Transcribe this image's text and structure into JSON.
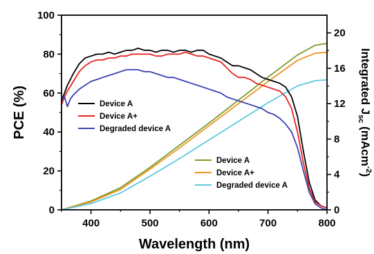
{
  "chart_data": {
    "type": "line",
    "xlabel": "Wavelength (nm)",
    "ylabel_left": "PCE (%)",
    "ylabel_right_parts": [
      "Integrated J",
      "sc",
      " (mAcm",
      "-2",
      ")"
    ],
    "xlim": [
      350,
      800
    ],
    "ylim_left": [
      0,
      100
    ],
    "ylim_right": [
      0,
      22
    ],
    "x_ticks": [
      400,
      500,
      600,
      700,
      800
    ],
    "y_ticks_left": [
      0,
      20,
      40,
      60,
      80,
      100
    ],
    "y_ticks_right": [
      0,
      4,
      8,
      12,
      16,
      20
    ],
    "legend_left": [
      "Device A",
      "Device A+",
      "Degraded device A"
    ],
    "legend_right": [
      "Device A",
      "Device A+",
      "Degraded device A"
    ],
    "colors": {
      "device_a": "#000000",
      "device_a_plus": "#e82020",
      "degraded": "#3a3fb0",
      "jsc_device_a": "#7a9a2a",
      "jsc_device_a_plus": "#f0921e",
      "jsc_degraded": "#5cc8e0"
    },
    "series_pce": [
      {
        "name": "Device A",
        "axis": "left",
        "x": [
          350,
          355,
          360,
          370,
          380,
          390,
          400,
          410,
          420,
          430,
          440,
          450,
          460,
          470,
          480,
          490,
          500,
          510,
          520,
          530,
          540,
          550,
          560,
          570,
          580,
          590,
          600,
          610,
          620,
          630,
          640,
          650,
          660,
          670,
          680,
          690,
          700,
          710,
          720,
          730,
          740,
          750,
          760,
          770,
          780,
          790,
          800
        ],
        "y": [
          56,
          60,
          64,
          70,
          75,
          78,
          79,
          80,
          80,
          81,
          80,
          81,
          82,
          82,
          83,
          82,
          82,
          81,
          82,
          82,
          81,
          82,
          82,
          81,
          82,
          82,
          80,
          79,
          78,
          76,
          74,
          74,
          73,
          72,
          70,
          68,
          67,
          66,
          65,
          63,
          58,
          48,
          30,
          14,
          5,
          2,
          1
        ]
      },
      {
        "name": "Device A+",
        "axis": "left",
        "x": [
          350,
          355,
          360,
          370,
          380,
          390,
          400,
          410,
          420,
          430,
          440,
          450,
          460,
          470,
          480,
          490,
          500,
          510,
          520,
          530,
          540,
          550,
          560,
          570,
          580,
          590,
          600,
          610,
          620,
          630,
          640,
          650,
          660,
          670,
          680,
          690,
          700,
          710,
          720,
          730,
          740,
          750,
          760,
          770,
          780,
          790,
          800
        ],
        "y": [
          54,
          58,
          61,
          66,
          71,
          74,
          76,
          77,
          77,
          78,
          78,
          79,
          79,
          80,
          80,
          80,
          80,
          79,
          79,
          80,
          80,
          80,
          81,
          80,
          79,
          79,
          78,
          77,
          76,
          73,
          70,
          68,
          68,
          67,
          65,
          64,
          63,
          62,
          61,
          58,
          52,
          40,
          24,
          11,
          4,
          2,
          1
        ]
      },
      {
        "name": "Degraded device A",
        "axis": "left",
        "x": [
          350,
          355,
          360,
          365,
          370,
          380,
          390,
          400,
          410,
          420,
          430,
          440,
          450,
          460,
          470,
          480,
          490,
          500,
          510,
          520,
          530,
          540,
          550,
          560,
          570,
          580,
          590,
          600,
          610,
          620,
          630,
          640,
          650,
          660,
          670,
          680,
          690,
          700,
          710,
          720,
          730,
          740,
          750,
          760,
          770,
          780,
          790,
          800
        ],
        "y": [
          57,
          58,
          53,
          57,
          59,
          62,
          64,
          66,
          67,
          68,
          69,
          70,
          71,
          72,
          72,
          72,
          71,
          71,
          70,
          69,
          68,
          68,
          67,
          66,
          65,
          64,
          63,
          62,
          61,
          60,
          58,
          57,
          56,
          55,
          54,
          53,
          52,
          50,
          49,
          47,
          44,
          40,
          32,
          20,
          9,
          3,
          1,
          0
        ]
      }
    ],
    "series_jsc": [
      {
        "name": "Device A",
        "axis": "right",
        "x": [
          350,
          400,
          450,
          500,
          550,
          600,
          650,
          700,
          750,
          780,
          800
        ],
        "y": [
          0,
          1.0,
          2.5,
          4.8,
          7.3,
          9.8,
          12.4,
          15.0,
          17.5,
          18.6,
          18.8
        ]
      },
      {
        "name": "Device A+",
        "axis": "right",
        "x": [
          350,
          400,
          450,
          500,
          550,
          600,
          650,
          700,
          750,
          780,
          800
        ],
        "y": [
          0,
          0.9,
          2.3,
          4.6,
          7.0,
          9.5,
          12.0,
          14.5,
          16.9,
          17.7,
          17.8
        ]
      },
      {
        "name": "Degraded device A",
        "axis": "right",
        "x": [
          350,
          400,
          450,
          500,
          550,
          600,
          650,
          700,
          750,
          780,
          800
        ],
        "y": [
          0,
          0.7,
          1.9,
          3.8,
          5.8,
          7.9,
          10.0,
          12.1,
          14.0,
          14.6,
          14.7
        ]
      }
    ]
  }
}
